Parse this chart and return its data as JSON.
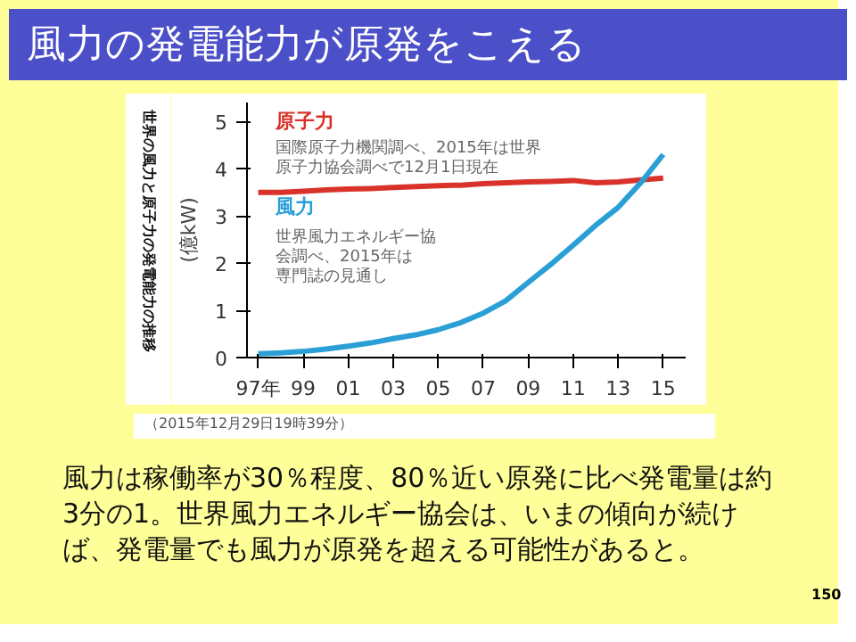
{
  "chart_data": {
    "type": "line",
    "title": "風力の発電能力が原発をこえる",
    "subtitle": "世界の風力と原子力の発電能力の推移",
    "ylabel": "(億kW)",
    "categories": [
      "97年",
      null,
      "99",
      null,
      "01",
      null,
      "03",
      null,
      "05",
      null,
      "07",
      null,
      "09",
      null,
      "11",
      null,
      "13",
      null,
      "15"
    ],
    "series": [
      {
        "name": "原子力",
        "color": "#d9322b",
        "values": [
          3.5,
          3.5,
          3.52,
          3.55,
          3.57,
          3.58,
          3.6,
          3.62,
          3.64,
          3.65,
          3.68,
          3.7,
          3.72,
          3.73,
          3.75,
          3.7,
          3.72,
          3.76,
          3.8
        ]
      },
      {
        "name": "風力",
        "color": "#2a9fd6",
        "values": [
          0.08,
          0.1,
          0.13,
          0.18,
          0.24,
          0.31,
          0.4,
          0.48,
          0.59,
          0.74,
          0.94,
          1.2,
          1.59,
          1.97,
          2.38,
          2.8,
          3.18,
          3.7,
          4.3
        ]
      }
    ],
    "ylim": [
      0,
      5.4
    ],
    "yticks": [
      0,
      1,
      2,
      3,
      4,
      5
    ],
    "grid": false,
    "marker": "none",
    "line_style": "solid",
    "annotations": [
      "国際原子力機関調べ、2015年は世界原子力協会調べで12月1日現在",
      "世界風力エネルギー協会調べ、2015年は専門誌の見通し",
      "（2015年12月29日19時39分）",
      "風力は稼働率が30％程度、80％近い原発に比べ発電量は約3分の1。世界風力エネルギー協会は、いまの傾向が続けば、発電量でも風力が原発を超える可能性があると。",
      "150"
    ]
  }
}
